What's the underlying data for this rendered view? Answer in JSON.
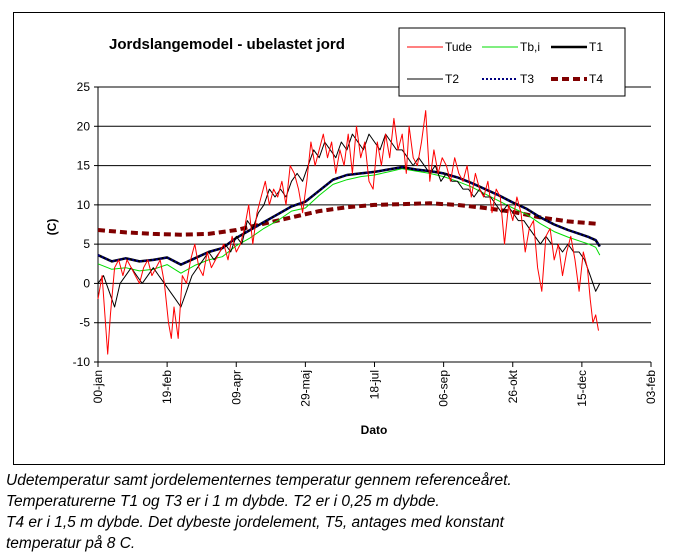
{
  "chart_data": {
    "type": "line",
    "title": "Jordslangemodel - ubelastet jord",
    "xlabel": "Dato",
    "ylabel": "(C)",
    "x_tick_labels": [
      "00-jan",
      "19-feb",
      "09-apr",
      "29-maj",
      "18-jul",
      "06-sep",
      "26-okt",
      "15-dec",
      "03-feb"
    ],
    "x_tick_days": [
      0,
      50,
      100,
      150,
      200,
      250,
      300,
      350,
      400
    ],
    "xlim": [
      0,
      400
    ],
    "ylim": [
      -10,
      25
    ],
    "y_ticks": [
      -10,
      -5,
      0,
      5,
      10,
      15,
      20,
      25
    ],
    "grid": "horizontal",
    "legend_position": "top-right",
    "series": [
      {
        "name": "Tude",
        "color": "#ff0000",
        "style": "thin",
        "x": [
          0,
          3,
          7,
          9,
          12,
          15,
          18,
          21,
          24,
          27,
          30,
          33,
          36,
          39,
          42,
          45,
          48,
          51,
          53,
          55,
          58,
          61,
          64,
          67,
          70,
          73,
          76,
          79,
          82,
          85,
          88,
          91,
          94,
          97,
          100,
          103,
          106,
          109,
          112,
          115,
          118,
          121,
          124,
          127,
          130,
          133,
          136,
          139,
          142,
          145,
          148,
          151,
          154,
          157,
          160,
          163,
          166,
          169,
          172,
          175,
          178,
          181,
          184,
          187,
          190,
          193,
          196,
          199,
          202,
          205,
          208,
          211,
          214,
          217,
          220,
          223,
          225,
          228,
          231,
          234,
          237,
          240,
          243,
          246,
          249,
          252,
          255,
          258,
          261,
          264,
          267,
          270,
          273,
          276,
          279,
          282,
          285,
          288,
          291,
          294,
          297,
          300,
          303,
          306,
          309,
          312,
          315,
          318,
          321,
          324,
          327,
          330,
          333,
          336,
          339,
          342,
          345,
          348,
          351,
          354,
          356,
          358,
          360,
          362
        ],
        "y": [
          -2,
          1,
          -9,
          -4,
          2,
          3,
          1,
          3,
          2,
          1,
          0,
          2,
          3,
          1,
          2,
          3,
          0,
          -5,
          -7,
          -3,
          -7,
          1,
          0,
          3,
          5,
          2,
          1,
          4,
          2,
          3,
          4,
          5,
          3,
          6,
          4,
          5,
          7,
          10,
          5,
          9,
          11,
          13,
          10,
          12,
          11,
          13,
          10,
          15,
          14,
          12,
          9,
          13,
          18,
          15,
          17,
          19,
          16,
          18,
          14,
          17,
          15,
          19,
          14,
          20,
          16,
          18,
          13,
          12,
          18,
          15,
          19,
          16,
          21,
          17,
          19,
          14,
          20,
          16,
          15,
          18,
          22,
          13,
          17,
          14,
          16,
          15,
          13,
          16,
          14,
          13,
          15,
          11,
          14,
          12,
          11,
          13,
          9,
          12,
          11,
          5,
          10,
          8,
          11,
          9,
          4,
          7,
          8,
          2,
          -1,
          6,
          7,
          3,
          5,
          1,
          4,
          6,
          3,
          -1,
          4,
          2,
          -2,
          -5,
          -4,
          -6
        ]
      },
      {
        "name": "Tb,i",
        "color": "#00dd00",
        "style": "thin",
        "x": [
          0,
          10,
          20,
          30,
          40,
          50,
          60,
          70,
          80,
          90,
          100,
          110,
          120,
          130,
          140,
          150,
          160,
          170,
          180,
          190,
          200,
          210,
          220,
          230,
          240,
          250,
          260,
          270,
          280,
          290,
          300,
          310,
          320,
          330,
          340,
          350,
          355,
          360,
          363
        ],
        "y": [
          2.5,
          1.8,
          2.0,
          1.6,
          1.8,
          2.4,
          1.3,
          2.3,
          3.0,
          3.4,
          4.8,
          5.8,
          7.0,
          8.0,
          9.2,
          9.6,
          11.2,
          12.6,
          13.2,
          13.6,
          13.8,
          14.2,
          14.6,
          14.3,
          14.0,
          13.6,
          13.0,
          12.3,
          11.4,
          10.5,
          9.6,
          8.8,
          7.6,
          6.6,
          5.9,
          5.3,
          5.0,
          4.6,
          3.6
        ]
      },
      {
        "name": "T1",
        "color": "#000000",
        "style": "thick",
        "x": [
          0,
          10,
          20,
          30,
          40,
          50,
          60,
          70,
          80,
          90,
          100,
          110,
          120,
          130,
          140,
          150,
          160,
          170,
          180,
          190,
          200,
          210,
          220,
          230,
          240,
          250,
          260,
          270,
          280,
          290,
          300,
          310,
          320,
          330,
          340,
          350,
          355,
          360,
          363
        ],
        "y": [
          3.6,
          2.8,
          3.2,
          2.8,
          3.0,
          3.3,
          2.4,
          3.2,
          4.0,
          4.5,
          5.8,
          6.8,
          7.8,
          8.8,
          9.8,
          10.4,
          11.8,
          13.2,
          13.8,
          14.0,
          14.2,
          14.5,
          14.8,
          14.5,
          14.3,
          14.0,
          13.5,
          12.8,
          12.0,
          11.2,
          10.3,
          9.5,
          8.4,
          7.5,
          6.8,
          6.2,
          5.9,
          5.5,
          4.7
        ]
      },
      {
        "name": "T2",
        "color": "#000000",
        "style": "thin",
        "x": [
          0,
          4,
          8,
          12,
          16,
          20,
          24,
          28,
          32,
          36,
          40,
          44,
          48,
          52,
          56,
          60,
          64,
          68,
          72,
          76,
          80,
          84,
          88,
          92,
          96,
          100,
          104,
          108,
          112,
          116,
          120,
          124,
          128,
          132,
          136,
          140,
          144,
          148,
          152,
          156,
          160,
          164,
          168,
          172,
          176,
          180,
          184,
          188,
          192,
          196,
          200,
          204,
          208,
          212,
          216,
          220,
          224,
          228,
          232,
          236,
          240,
          244,
          248,
          252,
          256,
          260,
          264,
          268,
          272,
          276,
          280,
          284,
          288,
          292,
          296,
          300,
          304,
          308,
          312,
          316,
          320,
          324,
          328,
          332,
          336,
          340,
          344,
          348,
          352,
          356,
          360,
          363
        ],
        "y": [
          0,
          1,
          -1,
          -3,
          0,
          1,
          2,
          1,
          0,
          1,
          2,
          1,
          0,
          -1,
          -2,
          -3,
          -1,
          1,
          2,
          3,
          4,
          3,
          4,
          5,
          4,
          6,
          5,
          8,
          7,
          9,
          10,
          12,
          11,
          12,
          11,
          13,
          14,
          13,
          15,
          17,
          16,
          18,
          17,
          16,
          18,
          17,
          19,
          18,
          17,
          19,
          18,
          17,
          19,
          18,
          17,
          17,
          16,
          15,
          16,
          15,
          14,
          15,
          13,
          14,
          13,
          13,
          12,
          12,
          11,
          12,
          11,
          11,
          10,
          9,
          10,
          9,
          8,
          8,
          7,
          6,
          5,
          6,
          5,
          5,
          4,
          5,
          4,
          4,
          3,
          1,
          -1,
          0
        ]
      },
      {
        "name": "T3",
        "color": "#000080",
        "style": "dotted",
        "x": [
          0,
          10,
          20,
          30,
          40,
          50,
          60,
          70,
          80,
          90,
          100,
          110,
          120,
          130,
          140,
          150,
          160,
          170,
          180,
          190,
          200,
          210,
          220,
          230,
          240,
          250,
          260,
          270,
          280,
          290,
          300,
          310,
          320,
          330,
          340,
          350,
          355,
          360,
          363
        ],
        "y": [
          3.6,
          2.8,
          3.2,
          2.8,
          3.0,
          3.3,
          2.4,
          3.2,
          4.0,
          4.5,
          5.8,
          6.8,
          7.8,
          8.8,
          9.8,
          10.4,
          11.8,
          13.2,
          13.8,
          14.0,
          14.2,
          14.5,
          14.8,
          14.5,
          14.3,
          14.0,
          13.5,
          12.8,
          12.0,
          11.2,
          10.3,
          9.5,
          8.4,
          7.5,
          6.8,
          6.2,
          5.9,
          5.5,
          4.7
        ]
      },
      {
        "name": "T4",
        "color": "#800000",
        "style": "dashed-thick",
        "x": [
          0,
          20,
          40,
          60,
          80,
          100,
          120,
          140,
          160,
          180,
          200,
          220,
          240,
          260,
          280,
          300,
          320,
          340,
          360
        ],
        "y": [
          6.8,
          6.5,
          6.3,
          6.2,
          6.3,
          6.8,
          7.6,
          8.4,
          9.2,
          9.7,
          10.0,
          10.1,
          10.2,
          10.0,
          9.6,
          9.1,
          8.4,
          7.9,
          7.6
        ]
      }
    ]
  },
  "caption": {
    "line1": "Udetemperatur samt jordelementernes temperatur gennem referenceåret.",
    "line2": "Temperaturerne T1 og T3 er i 1 m dybde. T2 er i 0,25 m dybde.",
    "line3": "T4 er i 1,5 m dybde. Det dybeste jordelement, T5, antages med konstant",
    "line4": "temperatur på 8 C."
  }
}
